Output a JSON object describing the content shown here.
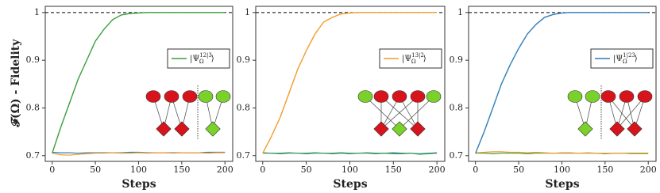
{
  "chart_data": [
    {
      "type": "line",
      "ylabel": "𝓕(Ω) - Fidelity",
      "xlabel": "Steps",
      "xlim": [
        -8,
        209
      ],
      "ylim": [
        0.688,
        1.013
      ],
      "xticks": [
        0,
        50,
        100,
        150,
        200
      ],
      "yticks": [
        0.7,
        0.8,
        0.9,
        1
      ],
      "reference": 1,
      "x": [
        0,
        10,
        20,
        30,
        40,
        50,
        60,
        70,
        80,
        90,
        100,
        110,
        120,
        130,
        140,
        150,
        160,
        170,
        180,
        190,
        200
      ],
      "series": [
        {
          "name": {
            "base": "|Ψ",
            "sub": "Ω",
            "sup": "12|3",
            "end": "⟩"
          },
          "color": "#3a9e3a",
          "values": [
            0.705,
            0.76,
            0.81,
            0.86,
            0.9,
            0.94,
            0.965,
            0.985,
            0.995,
            0.998,
            0.999,
            1,
            1,
            1,
            1,
            1,
            1,
            1,
            1,
            1,
            1
          ]
        },
        {
          "color": "#f39c2b",
          "values": [
            0.705,
            0.702,
            0.701,
            0.703,
            0.704,
            0.705,
            0.705,
            0.706,
            0.705,
            0.705,
            0.706,
            0.705,
            0.706,
            0.706,
            0.705,
            0.706,
            0.706,
            0.706,
            0.705,
            0.706,
            0.706
          ]
        },
        {
          "color": "#2f7fb8",
          "values": [
            0.707,
            0.706,
            0.706,
            0.705,
            0.706,
            0.706,
            0.706,
            0.706,
            0.706,
            0.707,
            0.707,
            0.706,
            0.706,
            0.706,
            0.706,
            0.706,
            0.706,
            0.706,
            0.707,
            0.707,
            0.707
          ]
        }
      ]
    },
    {
      "type": "line",
      "xlabel": "Steps",
      "xlim": [
        -8,
        209
      ],
      "ylim": [
        0.688,
        1.013
      ],
      "xticks": [
        0,
        50,
        100,
        150,
        200
      ],
      "yticks": [
        0.7,
        0.8,
        0.9,
        1
      ],
      "reference": 1,
      "x": [
        0,
        10,
        20,
        30,
        40,
        50,
        60,
        70,
        80,
        90,
        100,
        110,
        120,
        130,
        140,
        150,
        160,
        170,
        180,
        190,
        200
      ],
      "series": [
        {
          "name": {
            "base": "|Ψ",
            "sub": "Ω",
            "sup": "13|2",
            "end": "⟩"
          },
          "color": "#f39c2b",
          "values": [
            0.705,
            0.74,
            0.78,
            0.83,
            0.88,
            0.92,
            0.955,
            0.98,
            0.99,
            0.997,
            0.999,
            1,
            1,
            1,
            1,
            1,
            1,
            1,
            1,
            1,
            1
          ]
        },
        {
          "color": "#3a9e3a",
          "values": [
            0.705,
            0.705,
            0.704,
            0.705,
            0.705,
            0.704,
            0.705,
            0.705,
            0.704,
            0.705,
            0.704,
            0.705,
            0.705,
            0.704,
            0.705,
            0.704,
            0.704,
            0.705,
            0.703,
            0.704,
            0.705
          ]
        },
        {
          "color": "#2f7fb8",
          "values": [
            0.706,
            0.705,
            0.705,
            0.706,
            0.705,
            0.705,
            0.706,
            0.705,
            0.705,
            0.706,
            0.705,
            0.705,
            0.706,
            0.705,
            0.705,
            0.706,
            0.705,
            0.705,
            0.704,
            0.705,
            0.706
          ]
        }
      ]
    },
    {
      "type": "line",
      "xlabel": "Steps",
      "xlim": [
        -8,
        209
      ],
      "ylim": [
        0.688,
        1.013
      ],
      "xticks": [
        0,
        50,
        100,
        150,
        200
      ],
      "yticks": [
        0.7,
        0.8,
        0.9,
        1
      ],
      "reference": 1,
      "x": [
        0,
        10,
        20,
        30,
        40,
        50,
        60,
        70,
        80,
        90,
        100,
        110,
        120,
        130,
        140,
        150,
        160,
        170,
        180,
        190,
        200
      ],
      "series": [
        {
          "name": {
            "base": "|Ψ",
            "sub": "Ω",
            "sup": "1|23",
            "end": "⟩"
          },
          "color": "#2f7fb8",
          "values": [
            0.705,
            0.75,
            0.8,
            0.85,
            0.89,
            0.925,
            0.955,
            0.975,
            0.99,
            0.996,
            0.999,
            1,
            1,
            1,
            1,
            1,
            1,
            1,
            1,
            1,
            1
          ]
        },
        {
          "color": "#f39c2b",
          "values": [
            0.706,
            0.707,
            0.708,
            0.708,
            0.707,
            0.707,
            0.706,
            0.707,
            0.706,
            0.705,
            0.706,
            0.706,
            0.705,
            0.706,
            0.705,
            0.705,
            0.705,
            0.705,
            0.704,
            0.704,
            0.704
          ]
        },
        {
          "color": "#3a9e3a",
          "values": [
            0.705,
            0.705,
            0.704,
            0.705,
            0.705,
            0.705,
            0.704,
            0.705,
            0.705,
            0.705,
            0.705,
            0.705,
            0.705,
            0.705,
            0.705,
            0.704,
            0.705,
            0.705,
            0.705,
            0.705,
            0.705
          ]
        }
      ]
    }
  ]
}
